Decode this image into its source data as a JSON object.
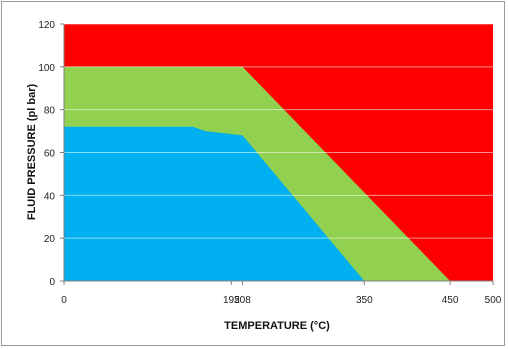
{
  "chart_data": {
    "type": "area",
    "title": "",
    "xlabel": "TEMPERATURE (°C)",
    "ylabel": "FLUID PRESSURE (pl bar)",
    "xlim": [
      0,
      500
    ],
    "ylim": [
      0,
      120
    ],
    "x_ticks": [
      0,
      195,
      208,
      350,
      450,
      500
    ],
    "x_tick_labels": [
      "0",
      "195",
      "208",
      "350",
      "450",
      "500"
    ],
    "y_ticks": [
      0,
      20,
      40,
      60,
      80,
      100,
      120
    ],
    "y_tick_labels": [
      "0",
      "20",
      "40",
      "60",
      "80",
      "100",
      "120"
    ],
    "grid": true,
    "legend": "none",
    "regions": [
      {
        "color": "#ff0000",
        "points": [
          [
            0,
            0
          ],
          [
            500,
            0
          ],
          [
            500,
            120
          ],
          [
            0,
            120
          ]
        ]
      },
      {
        "color": "#92d050",
        "points": [
          [
            0,
            0
          ],
          [
            450,
            0
          ],
          [
            208,
            100
          ],
          [
            0,
            100
          ]
        ]
      },
      {
        "color": "#00b0f0",
        "points": [
          [
            0,
            0
          ],
          [
            350,
            0
          ],
          [
            208,
            68
          ],
          [
            165,
            70
          ],
          [
            150,
            72
          ],
          [
            0,
            72
          ]
        ]
      }
    ]
  }
}
